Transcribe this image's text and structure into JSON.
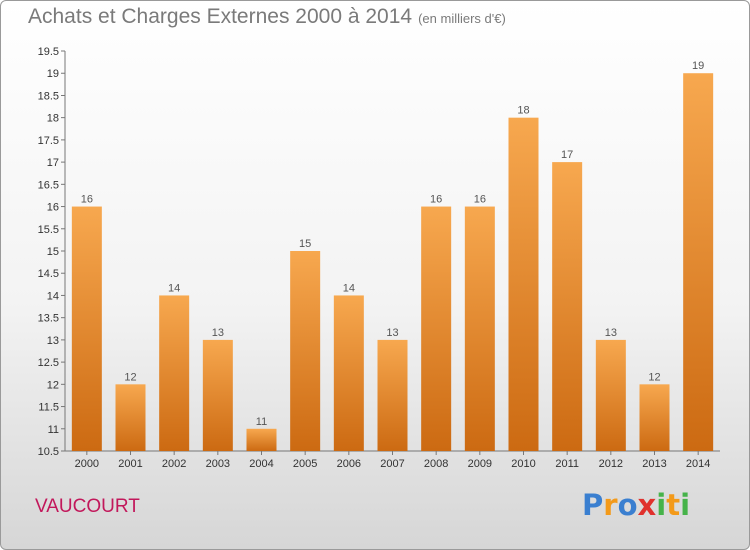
{
  "header": {
    "title": "Achats et Charges Externes 2000 à 2014",
    "subtitle": "(en milliers d'€)"
  },
  "footer": {
    "location": "VAUCOURT",
    "brand": "Proxiti"
  },
  "colors": {
    "bar_light": "#f7a84f",
    "bar_dark": "#cc6a12",
    "axis": "#777777",
    "brand_letters": [
      "#3a7fd0",
      "#f39a1a",
      "#46b34a",
      "#e0312d"
    ]
  },
  "chart_data": {
    "type": "bar",
    "categories": [
      "2000",
      "2001",
      "2002",
      "2003",
      "2004",
      "2005",
      "2006",
      "2007",
      "2008",
      "2009",
      "2010",
      "2011",
      "2012",
      "2013",
      "2014"
    ],
    "values": [
      16,
      12,
      14,
      13,
      11,
      15,
      14,
      13,
      16,
      16,
      18,
      17,
      13,
      12,
      19
    ],
    "value_labels": [
      "16",
      "12",
      "14",
      "13",
      "11",
      "15",
      "14",
      "13",
      "16",
      "16",
      "18",
      "17",
      "13",
      "12",
      "19"
    ],
    "yticks": [
      10.5,
      11,
      11.5,
      12,
      12.5,
      13,
      13.5,
      14,
      14.5,
      15,
      15.5,
      16,
      16.5,
      17,
      17.5,
      18,
      18.5,
      19,
      19.5
    ],
    "ytick_labels": [
      "10.5",
      "11",
      "11.5",
      "12",
      "12.5",
      "13",
      "13.5",
      "14",
      "14.5",
      "15",
      "15.5",
      "16",
      "16.5",
      "17",
      "17.5",
      "18",
      "18.5",
      "19",
      "19.5"
    ],
    "ylim": [
      10.5,
      19.5
    ],
    "title": "Achats et Charges Externes 2000 à 2014",
    "xlabel": "",
    "ylabel": "",
    "grid": false,
    "legend": "none"
  }
}
